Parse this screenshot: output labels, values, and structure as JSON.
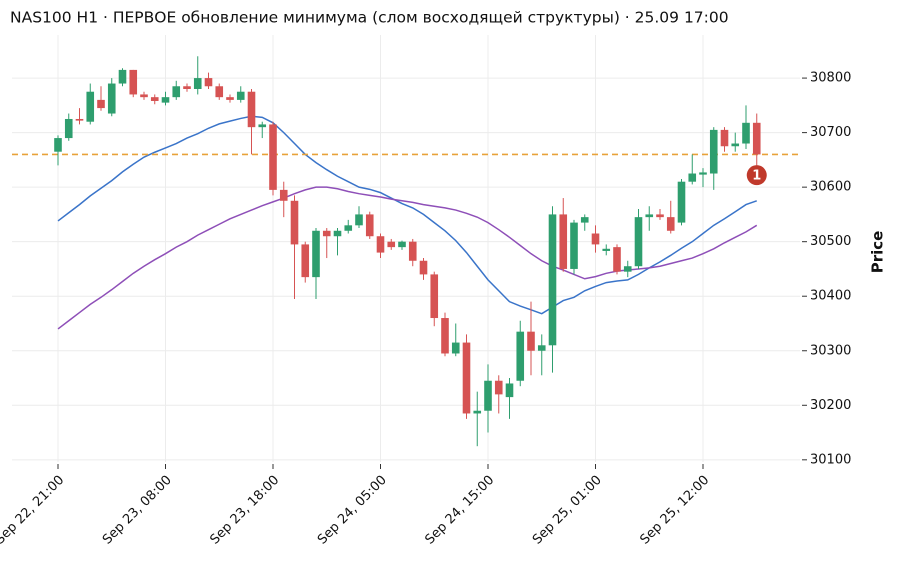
{
  "chart_data": {
    "type": "candlestick",
    "title": "NAS100 H1 · ПЕРВОЕ обновление минимума (слом восходящей структуры) · 25.09 17:00",
    "y_label": "Price",
    "categories": [
      "Sep 22, 21:00",
      null,
      null,
      null,
      null,
      null,
      null,
      null,
      null,
      null,
      "Sep 23, 08:00",
      null,
      null,
      null,
      null,
      null,
      null,
      null,
      null,
      null,
      "Sep 23, 18:00",
      null,
      null,
      null,
      null,
      null,
      null,
      null,
      null,
      null,
      "Sep 24, 05:00",
      null,
      null,
      null,
      null,
      null,
      null,
      null,
      null,
      null,
      "Sep 24, 15:00",
      null,
      null,
      null,
      null,
      null,
      null,
      null,
      null,
      null,
      "Sep 25, 01:00",
      null,
      null,
      null,
      null,
      null,
      null,
      null,
      null,
      null,
      "Sep 25, 12:00",
      null,
      null,
      null,
      null,
      null
    ],
    "open": [
      30665,
      30690,
      30725,
      30720,
      30760,
      30735,
      30790,
      30815,
      30770,
      30765,
      30755,
      30765,
      30785,
      30780,
      30800,
      30785,
      30765,
      30760,
      30775,
      30710,
      30715,
      30595,
      30575,
      30495,
      30435,
      30520,
      30510,
      30520,
      30530,
      30550,
      30510,
      30500,
      30490,
      30500,
      30465,
      30440,
      30360,
      30295,
      30315,
      30185,
      30190,
      30245,
      30215,
      30245,
      30335,
      30300,
      30310,
      30550,
      30450,
      30535,
      30515,
      30483,
      30490,
      30445,
      30455,
      30545,
      30550,
      30545,
      30535,
      30610,
      30623,
      30625,
      30705,
      30675,
      30680,
      30718
    ],
    "high": [
      30695,
      30735,
      30745,
      30790,
      30785,
      30800,
      30818,
      30815,
      30775,
      30770,
      30775,
      30795,
      30790,
      30840,
      30810,
      30790,
      30770,
      30785,
      30780,
      30720,
      30720,
      30610,
      30585,
      30500,
      30525,
      30525,
      30525,
      30540,
      30565,
      30555,
      30515,
      30505,
      30502,
      30505,
      30470,
      30445,
      30370,
      30350,
      30330,
      30225,
      30275,
      30255,
      30250,
      30355,
      30390,
      30330,
      30565,
      30580,
      30540,
      30550,
      30530,
      30495,
      30495,
      30465,
      30560,
      30565,
      30560,
      30575,
      30615,
      30660,
      30635,
      30710,
      30710,
      30700,
      30750,
      30735
    ],
    "low": [
      30640,
      30685,
      30715,
      30715,
      30740,
      30730,
      30785,
      30765,
      30760,
      30752,
      30750,
      30760,
      30775,
      30770,
      30780,
      30760,
      30755,
      30755,
      30660,
      30690,
      30585,
      30545,
      30395,
      30425,
      30395,
      30470,
      30475,
      30515,
      30525,
      30505,
      30470,
      30485,
      30485,
      30455,
      30430,
      30345,
      30290,
      30290,
      30175,
      30125,
      30150,
      30185,
      30175,
      30235,
      30255,
      30255,
      30260,
      30445,
      30440,
      30520,
      30480,
      30475,
      30440,
      30435,
      30450,
      30520,
      30540,
      30515,
      30530,
      30605,
      30600,
      30595,
      30665,
      30665,
      30670,
      30640
    ],
    "close": [
      30690,
      30725,
      30722,
      30775,
      30745,
      30790,
      30815,
      30770,
      30765,
      30758,
      30765,
      30785,
      30780,
      30800,
      30785,
      30765,
      30760,
      30775,
      30710,
      30715,
      30595,
      30575,
      30495,
      30435,
      30520,
      30510,
      30520,
      30530,
      30550,
      30510,
      30480,
      30490,
      30500,
      30465,
      30440,
      30360,
      30295,
      30315,
      30185,
      30190,
      30245,
      30220,
      30240,
      30335,
      30300,
      30310,
      30550,
      30450,
      30535,
      30545,
      30495,
      30487,
      30445,
      30455,
      30545,
      30550,
      30545,
      30520,
      30610,
      30625,
      30627,
      30705,
      30675,
      30680,
      30718,
      30660
    ],
    "up_color": "#2e9e6e",
    "down_color": "#d65353",
    "lines": [
      {
        "color": "#3a74c9",
        "values": [
          30538,
          30553,
          30568,
          30584,
          30598,
          30612,
          30628,
          30642,
          30655,
          30664,
          30672,
          30680,
          30690,
          30698,
          30708,
          30716,
          30721,
          30726,
          30730,
          30728,
          30718,
          30700,
          30680,
          30660,
          30645,
          30632,
          30620,
          30610,
          30600,
          30596,
          30590,
          30580,
          30570,
          30562,
          30550,
          30535,
          30520,
          30502,
          30480,
          30455,
          30430,
          30410,
          30390,
          30382,
          30375,
          30368,
          30380,
          30392,
          30398,
          30410,
          30418,
          30425,
          30428,
          30430,
          30440,
          30452,
          30463,
          30475,
          30488,
          30500,
          30515,
          30530,
          30542,
          30555,
          30568,
          30575
        ]
      },
      {
        "color": "#8e4fb8",
        "values": [
          30340,
          30355,
          30370,
          30385,
          30398,
          30412,
          30427,
          30442,
          30455,
          30467,
          30478,
          30490,
          30500,
          30512,
          30522,
          30532,
          30542,
          30550,
          30558,
          30566,
          30573,
          30580,
          30588,
          30595,
          30600,
          30600,
          30597,
          30592,
          30588,
          30585,
          30582,
          30578,
          30575,
          30572,
          30568,
          30565,
          30562,
          30558,
          30552,
          30545,
          30535,
          30522,
          30508,
          30493,
          30478,
          30465,
          30455,
          30448,
          30440,
          30432,
          30436,
          30442,
          30446,
          30448,
          30450,
          30452,
          30455,
          30460,
          30465,
          30470,
          30478,
          30487,
          30498,
          30508,
          30518,
          30530
        ]
      }
    ],
    "hline": {
      "value": 30660,
      "color": "#e8a23a"
    },
    "annotations": [
      {
        "text": "1",
        "x": 65,
        "y": 30622,
        "color": "#c0392b"
      }
    ],
    "ylim": [
      30096,
      30879
    ],
    "yticks": [
      30100,
      30200,
      30300,
      30400,
      30500,
      30600,
      30700,
      30800
    ],
    "grid": true
  }
}
